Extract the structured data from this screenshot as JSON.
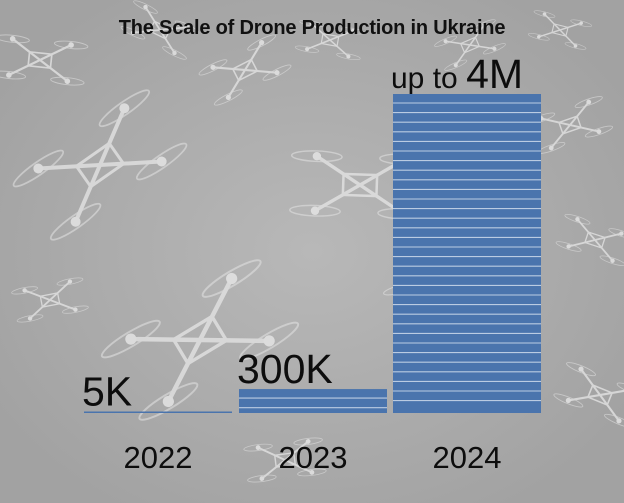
{
  "chart_data": {
    "type": "bar",
    "title": "The Scale of Drone Production in Ukraine",
    "categories": [
      "2022",
      "2023",
      "2024"
    ],
    "values": [
      5000,
      300000,
      4000000
    ],
    "value_labels": [
      "5K",
      "300K",
      "up to 4M"
    ],
    "xlabel": "",
    "ylabel": "",
    "ylim": [
      0,
      4000000
    ],
    "grid": false,
    "bar_color": "#4a74ad",
    "stripe_color": "#c7d5e8",
    "background_color": "#a9a9a9",
    "background_image": "drones-photo"
  }
}
